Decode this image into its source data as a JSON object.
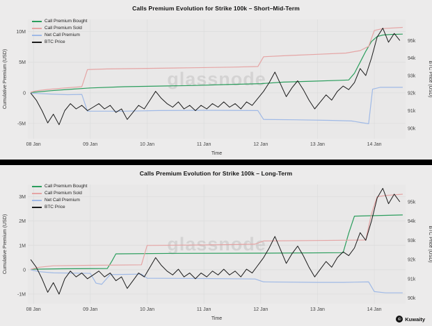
{
  "watermark": "glassnode",
  "attribution": {
    "symbol": "©",
    "label": "Kuwaity"
  },
  "colors": {
    "background": "#ecebeb",
    "plot_background": "#e9e8e8",
    "divider": "#000000",
    "grid": "#dcdcdc",
    "bought": "#2a9d5c",
    "sold": "#e5a4a4",
    "net": "#9fb9e6",
    "btc": "#1a1a1a"
  },
  "chart_data": [
    {
      "type": "line",
      "title": "Calls Premium Evolution for Strike 100k – Short–Mid-Term",
      "xlabel": "Time",
      "ylabel_left": "Cumulative Premium (USD)",
      "ylabel_right": "BTC Price (USD)",
      "legend_position": "upper-left",
      "grid": true,
      "xlim": [
        7.9,
        14.55
      ],
      "ylim_left": [
        -7.5,
        12
      ],
      "ylim_right": [
        89.4,
        96.2
      ],
      "x_ticks": [
        {
          "v": 8,
          "label": "08 Jan"
        },
        {
          "v": 9,
          "label": "09 Jan"
        },
        {
          "v": 10,
          "label": "10 Jan"
        },
        {
          "v": 11,
          "label": "11 Jan"
        },
        {
          "v": 12,
          "label": "12 Jan"
        },
        {
          "v": 13,
          "label": "13 Jan"
        },
        {
          "v": 14,
          "label": "14 Jan"
        }
      ],
      "y_left_ticks": [
        {
          "v": 10,
          "label": "10M"
        },
        {
          "v": 5,
          "label": "5M"
        },
        {
          "v": 0,
          "label": "0"
        },
        {
          "v": -5,
          "label": "-5M"
        }
      ],
      "y_right_ticks": [
        {
          "v": 95,
          "label": "95k"
        },
        {
          "v": 94,
          "label": "94k"
        },
        {
          "v": 93,
          "label": "93k"
        },
        {
          "v": 92,
          "label": "92k"
        },
        {
          "v": 91,
          "label": "91k"
        },
        {
          "v": 90,
          "label": "90k"
        }
      ],
      "y_left_unit": "millions USD",
      "y_right_unit": "thousands USD",
      "series": [
        {
          "name": "Call Premium Bought",
          "color_key": "bought",
          "axis": "left",
          "points": [
            [
              7.95,
              0.05
            ],
            [
              8.3,
              0.35
            ],
            [
              8.6,
              0.55
            ],
            [
              9.0,
              0.8
            ],
            [
              9.6,
              1.0
            ],
            [
              10.2,
              1.1
            ],
            [
              10.8,
              1.2
            ],
            [
              11.4,
              1.35
            ],
            [
              12.0,
              1.5
            ],
            [
              12.4,
              1.75
            ],
            [
              12.9,
              1.9
            ],
            [
              13.4,
              2.05
            ],
            [
              13.55,
              2.1
            ],
            [
              13.65,
              3.2
            ],
            [
              13.75,
              5.0
            ],
            [
              13.85,
              6.8
            ],
            [
              13.95,
              8.4
            ],
            [
              14.05,
              9.2
            ],
            [
              14.15,
              9.45
            ],
            [
              14.3,
              9.55
            ],
            [
              14.5,
              9.6
            ]
          ]
        },
        {
          "name": "Call Premium Sold",
          "color_key": "sold",
          "axis": "left",
          "points": [
            [
              7.95,
              0.1
            ],
            [
              8.05,
              0.35
            ],
            [
              8.25,
              0.55
            ],
            [
              8.55,
              0.8
            ],
            [
              8.85,
              1.0
            ],
            [
              8.95,
              3.8
            ],
            [
              9.3,
              3.9
            ],
            [
              10.0,
              4.0
            ],
            [
              10.8,
              4.1
            ],
            [
              11.5,
              4.2
            ],
            [
              11.95,
              4.3
            ],
            [
              12.05,
              5.9
            ],
            [
              12.5,
              6.1
            ],
            [
              13.0,
              6.3
            ],
            [
              13.5,
              6.5
            ],
            [
              13.75,
              6.9
            ],
            [
              13.9,
              7.6
            ],
            [
              14.0,
              10.2
            ],
            [
              14.15,
              10.5
            ],
            [
              14.5,
              10.7
            ]
          ]
        },
        {
          "name": "Net Call Premium",
          "color_key": "net",
          "axis": "left",
          "points": [
            [
              7.95,
              -0.05
            ],
            [
              8.3,
              -0.2
            ],
            [
              8.6,
              -0.3
            ],
            [
              8.85,
              -0.25
            ],
            [
              8.95,
              -3.0
            ],
            [
              9.6,
              -3.0
            ],
            [
              10.2,
              -2.9
            ],
            [
              11.0,
              -2.85
            ],
            [
              11.95,
              -2.9
            ],
            [
              12.05,
              -4.35
            ],
            [
              12.6,
              -4.4
            ],
            [
              13.2,
              -4.5
            ],
            [
              13.6,
              -4.6
            ],
            [
              13.8,
              -4.9
            ],
            [
              13.9,
              -5.05
            ],
            [
              13.97,
              0.6
            ],
            [
              14.1,
              0.9
            ],
            [
              14.5,
              0.9
            ]
          ]
        },
        {
          "name": "BTC Price",
          "color_key": "btc",
          "axis": "right",
          "x_start": 7.95,
          "x_step": 0.1,
          "values": [
            92.0,
            91.6,
            91.0,
            90.3,
            90.8,
            90.2,
            91.0,
            91.4,
            91.1,
            91.3,
            91.0,
            91.2,
            91.4,
            91.1,
            91.3,
            90.9,
            91.1,
            90.5,
            90.9,
            91.3,
            91.1,
            91.6,
            92.1,
            91.7,
            91.4,
            91.2,
            91.5,
            91.1,
            91.3,
            91.0,
            91.3,
            91.1,
            91.4,
            91.2,
            91.5,
            91.2,
            91.4,
            91.1,
            91.5,
            91.3,
            91.7,
            92.1,
            92.6,
            93.2,
            92.5,
            91.8,
            92.3,
            92.7,
            92.2,
            91.6,
            91.1,
            91.5,
            91.9,
            91.6,
            92.1,
            92.4,
            92.2,
            92.6,
            93.4,
            93.0,
            94.0,
            95.2,
            95.7,
            94.9,
            95.4,
            95.0
          ]
        }
      ]
    },
    {
      "type": "line",
      "title": "Calls Premium Evolution for Strike 100k – Long-Term",
      "xlabel": "Time",
      "ylabel_left": "Cumulative Premium (USD)",
      "ylabel_right": "BTC Price (USD)",
      "legend_position": "upper-left",
      "grid": true,
      "xlim": [
        7.9,
        14.55
      ],
      "ylim_left": [
        -1.4,
        3.5
      ],
      "ylim_right": [
        89.7,
        95.9
      ],
      "x_ticks": [
        {
          "v": 8,
          "label": "08 Jan"
        },
        {
          "v": 9,
          "label": "09 Jan"
        },
        {
          "v": 10,
          "label": "10 Jan"
        },
        {
          "v": 11,
          "label": "11 Jan"
        },
        {
          "v": 12,
          "label": "12 Jan"
        },
        {
          "v": 13,
          "label": "13 Jan"
        },
        {
          "v": 14,
          "label": "14 Jan"
        }
      ],
      "y_left_ticks": [
        {
          "v": 3,
          "label": "3M"
        },
        {
          "v": 2,
          "label": "2M"
        },
        {
          "v": 1,
          "label": "1M"
        },
        {
          "v": 0,
          "label": "0"
        },
        {
          "v": -1,
          "label": "-1M"
        }
      ],
      "y_right_ticks": [
        {
          "v": 95,
          "label": "95k"
        },
        {
          "v": 94,
          "label": "94k"
        },
        {
          "v": 93,
          "label": "93k"
        },
        {
          "v": 92,
          "label": "92k"
        },
        {
          "v": 91,
          "label": "91k"
        },
        {
          "v": 90,
          "label": "90k"
        }
      ],
      "y_left_unit": "millions USD",
      "y_right_unit": "thousands USD",
      "series": [
        {
          "name": "Call Premium Bought",
          "color_key": "bought",
          "axis": "left",
          "points": [
            [
              7.95,
              0.02
            ],
            [
              8.5,
              0.04
            ],
            [
              9.3,
              0.05
            ],
            [
              9.38,
              0.35
            ],
            [
              9.45,
              0.65
            ],
            [
              10.5,
              0.67
            ],
            [
              12.0,
              0.68
            ],
            [
              13.45,
              0.7
            ],
            [
              13.55,
              1.5
            ],
            [
              13.65,
              2.2
            ],
            [
              14.0,
              2.22
            ],
            [
              14.5,
              2.25
            ]
          ]
        },
        {
          "name": "Call Premium Sold",
          "color_key": "sold",
          "axis": "left",
          "points": [
            [
              7.95,
              0.02
            ],
            [
              8.1,
              0.1
            ],
            [
              8.35,
              0.16
            ],
            [
              9.0,
              0.18
            ],
            [
              9.9,
              0.2
            ],
            [
              10.0,
              1.0
            ],
            [
              11.0,
              1.02
            ],
            [
              11.9,
              1.05
            ],
            [
              12.05,
              1.18
            ],
            [
              13.0,
              1.2
            ],
            [
              13.85,
              1.22
            ],
            [
              13.95,
              2.3
            ],
            [
              14.05,
              3.0
            ],
            [
              14.2,
              3.05
            ],
            [
              14.5,
              3.1
            ]
          ]
        },
        {
          "name": "Net Call Premium",
          "color_key": "net",
          "axis": "left",
          "points": [
            [
              7.95,
              0.0
            ],
            [
              8.1,
              -0.08
            ],
            [
              8.35,
              -0.13
            ],
            [
              9.0,
              -0.15
            ],
            [
              9.1,
              -0.55
            ],
            [
              9.2,
              -0.6
            ],
            [
              9.35,
              -0.2
            ],
            [
              9.9,
              -0.18
            ],
            [
              10.0,
              -0.35
            ],
            [
              11.0,
              -0.36
            ],
            [
              11.9,
              -0.38
            ],
            [
              12.05,
              -0.5
            ],
            [
              13.0,
              -0.52
            ],
            [
              13.45,
              -0.52
            ],
            [
              13.9,
              -0.5
            ],
            [
              14.0,
              -0.9
            ],
            [
              14.2,
              -0.95
            ],
            [
              14.5,
              -0.95
            ]
          ]
        },
        {
          "name": "BTC Price",
          "color_key": "btc",
          "axis": "right",
          "x_start": 7.95,
          "x_step": 0.1,
          "values": [
            92.0,
            91.6,
            91.0,
            90.3,
            90.8,
            90.2,
            91.0,
            91.4,
            91.1,
            91.3,
            91.0,
            91.2,
            91.4,
            91.1,
            91.3,
            90.9,
            91.1,
            90.5,
            90.9,
            91.3,
            91.1,
            91.6,
            92.1,
            91.7,
            91.4,
            91.2,
            91.5,
            91.1,
            91.3,
            91.0,
            91.3,
            91.1,
            91.4,
            91.2,
            91.5,
            91.2,
            91.4,
            91.1,
            91.5,
            91.3,
            91.7,
            92.1,
            92.6,
            93.2,
            92.5,
            91.8,
            92.3,
            92.7,
            92.2,
            91.6,
            91.1,
            91.5,
            91.9,
            91.6,
            92.1,
            92.4,
            92.2,
            92.6,
            93.4,
            93.0,
            94.0,
            95.2,
            95.7,
            94.9,
            95.4,
            95.0
          ]
        }
      ]
    }
  ]
}
